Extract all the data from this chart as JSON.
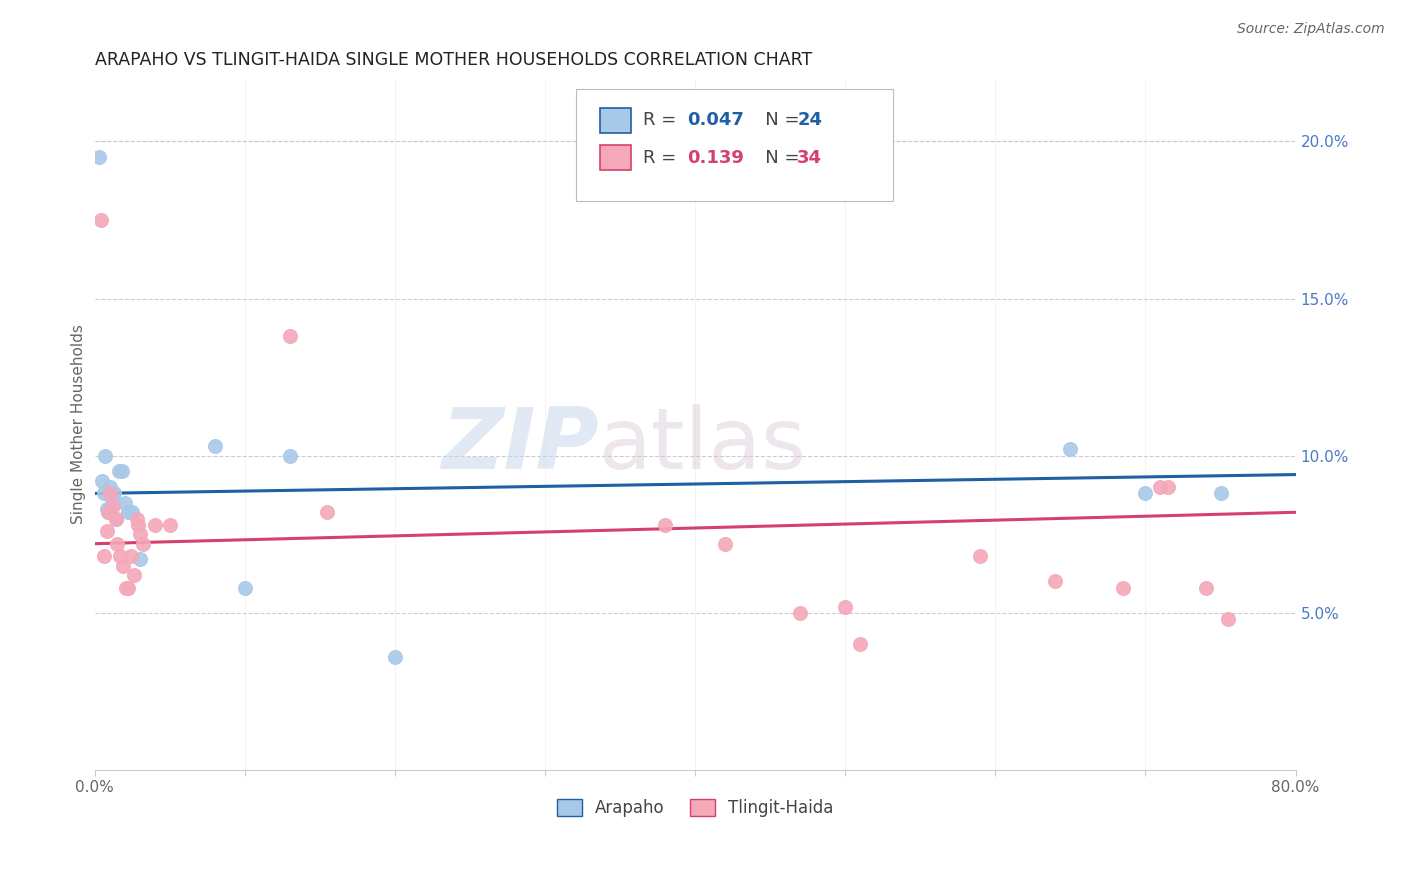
{
  "title": "ARAPAHO VS TLINGIT-HAIDA SINGLE MOTHER HOUSEHOLDS CORRELATION CHART",
  "source": "Source: ZipAtlas.com",
  "ylabel": "Single Mother Households",
  "watermark_zip": "ZIP",
  "watermark_atlas": "atlas",
  "xlim": [
    0,
    0.8
  ],
  "ylim": [
    0,
    0.22
  ],
  "yticks_right": [
    0.05,
    0.1,
    0.15,
    0.2
  ],
  "ytick_right_labels": [
    "5.0%",
    "10.0%",
    "15.0%",
    "20.0%"
  ],
  "legend_blue_R": "0.047",
  "legend_blue_N": "24",
  "legend_pink_R": "0.139",
  "legend_pink_N": "34",
  "blue_color": "#a8c8e8",
  "pink_color": "#f4a8b8",
  "blue_line_color": "#1f5fa6",
  "pink_line_color": "#d44070",
  "arapaho_x": [
    0.003,
    0.005,
    0.006,
    0.007,
    0.008,
    0.009,
    0.01,
    0.011,
    0.012,
    0.013,
    0.014,
    0.016,
    0.018,
    0.02,
    0.022,
    0.025,
    0.03,
    0.08,
    0.1,
    0.13,
    0.2,
    0.65,
    0.7,
    0.75
  ],
  "arapaho_y": [
    0.195,
    0.092,
    0.088,
    0.1,
    0.083,
    0.082,
    0.09,
    0.087,
    0.085,
    0.088,
    0.08,
    0.095,
    0.095,
    0.085,
    0.082,
    0.082,
    0.067,
    0.103,
    0.058,
    0.1,
    0.036,
    0.102,
    0.088,
    0.088
  ],
  "tlingit_x": [
    0.004,
    0.006,
    0.008,
    0.009,
    0.01,
    0.012,
    0.014,
    0.015,
    0.017,
    0.019,
    0.021,
    0.022,
    0.024,
    0.026,
    0.028,
    0.029,
    0.03,
    0.032,
    0.04,
    0.05,
    0.13,
    0.155,
    0.38,
    0.42,
    0.47,
    0.5,
    0.51,
    0.59,
    0.64,
    0.685,
    0.71,
    0.715,
    0.74,
    0.755
  ],
  "tlingit_y": [
    0.175,
    0.068,
    0.076,
    0.082,
    0.088,
    0.084,
    0.08,
    0.072,
    0.068,
    0.065,
    0.058,
    0.058,
    0.068,
    0.062,
    0.08,
    0.078,
    0.075,
    0.072,
    0.078,
    0.078,
    0.138,
    0.082,
    0.078,
    0.072,
    0.05,
    0.052,
    0.04,
    0.068,
    0.06,
    0.058,
    0.09,
    0.09,
    0.058,
    0.048
  ],
  "blue_trend_x0": 0.0,
  "blue_trend_y0": 0.088,
  "blue_trend_x1": 0.8,
  "blue_trend_y1": 0.094,
  "pink_trend_x0": 0.0,
  "pink_trend_y0": 0.072,
  "pink_trend_x1": 0.8,
  "pink_trend_y1": 0.082
}
